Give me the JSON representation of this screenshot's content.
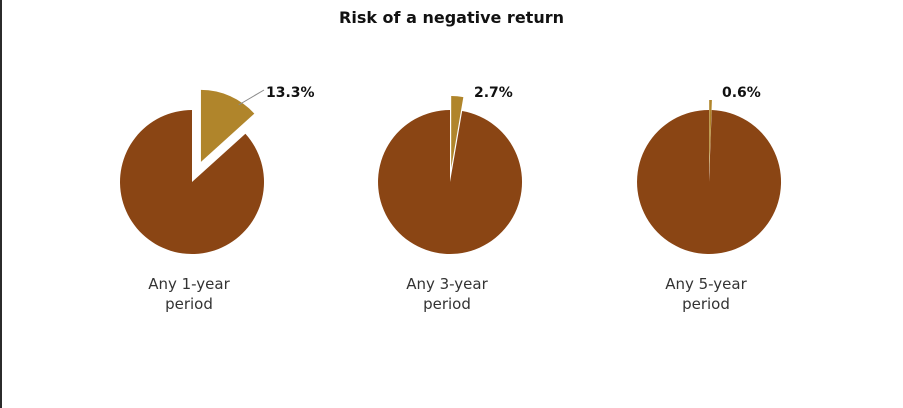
{
  "chart_data": {
    "type": "pie",
    "title": "Risk of a negative return",
    "charts": [
      {
        "category": [
          "Any 1-year",
          "period"
        ],
        "negative_share": 13.3,
        "label": "13.3%"
      },
      {
        "category": [
          "Any 3-year",
          "period"
        ],
        "negative_share": 2.7,
        "label": "2.7%"
      },
      {
        "category": [
          "Any 5-year",
          "period"
        ],
        "negative_share": 0.6,
        "label": "0.6%"
      }
    ],
    "colors": {
      "main": "#8a4514",
      "highlight": "#b0852b"
    }
  }
}
